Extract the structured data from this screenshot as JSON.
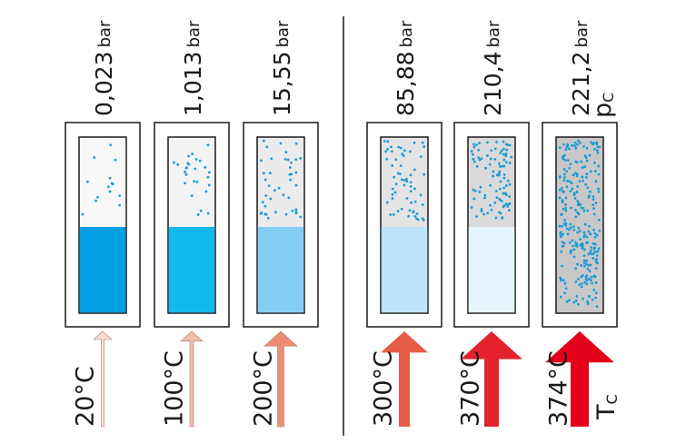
{
  "containers": [
    {
      "pressure": "0,023",
      "unit": "bar",
      "temperature": "20°C"
    },
    {
      "pressure": "1,013",
      "unit": "bar",
      "temperature": "100°C"
    },
    {
      "pressure": "15,55",
      "unit": "bar",
      "temperature": "200°C"
    },
    {
      "pressure": "85,88",
      "unit": "bar",
      "temperature": "300°C"
    },
    {
      "pressure": "210,4",
      "unit": "bar",
      "temperature": "370°C"
    },
    {
      "pressure": "221,2",
      "unit": "bar",
      "temperature": "374°C"
    }
  ],
  "critical_pressure": {
    "symbol": "p",
    "subscript": "C"
  },
  "critical_temperature": {
    "symbol": "T",
    "subscript": "C"
  }
}
